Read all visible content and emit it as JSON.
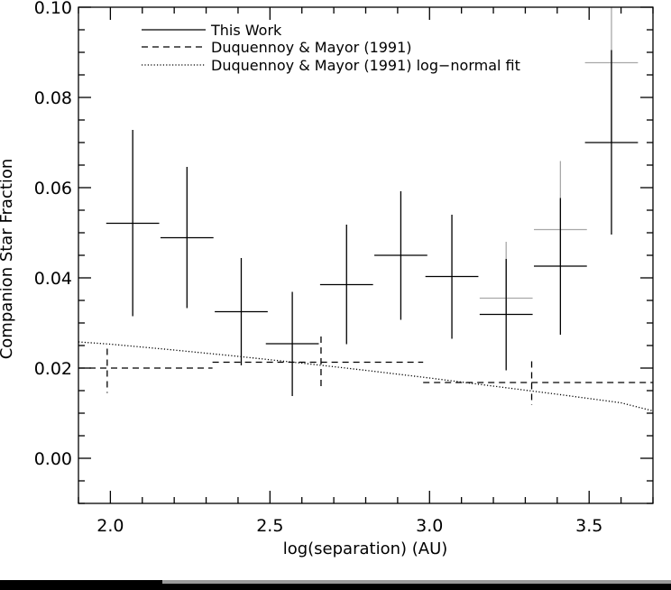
{
  "chart_data": {
    "type": "scatter",
    "xlabel": "log(separation) (AU)",
    "ylabel": "Companion Star Fraction",
    "xlim": [
      1.9,
      3.7
    ],
    "ylim": [
      -0.01,
      0.1
    ],
    "x_ticks": [
      "2.0",
      "2.5",
      "3.0",
      "3.5"
    ],
    "y_ticks": [
      "0.00",
      "0.02",
      "0.04",
      "0.06",
      "0.08",
      "0.10"
    ],
    "legend_position": "top-left",
    "legend": [
      {
        "label": "This Work",
        "style": "solid"
      },
      {
        "label": "Duquennoy & Mayor (1991)",
        "style": "dashed"
      },
      {
        "label": "Duquennoy & Mayor (1991) log−normal fit",
        "style": "dotted"
      }
    ],
    "series": [
      {
        "name": "This Work",
        "style": "solid",
        "color": "#000000",
        "points": [
          {
            "x": 2.07,
            "xerr": 0.083,
            "y": 0.0521,
            "ylo": 0.0315,
            "yhi": 0.0728
          },
          {
            "x": 2.24,
            "xerr": 0.083,
            "y": 0.0489,
            "ylo": 0.0333,
            "yhi": 0.0646
          },
          {
            "x": 2.41,
            "xerr": 0.083,
            "y": 0.0325,
            "ylo": 0.0206,
            "yhi": 0.0444
          },
          {
            "x": 2.57,
            "xerr": 0.083,
            "y": 0.0254,
            "ylo": 0.0138,
            "yhi": 0.0369
          },
          {
            "x": 2.74,
            "xerr": 0.083,
            "y": 0.0385,
            "ylo": 0.0253,
            "yhi": 0.0518
          },
          {
            "x": 2.91,
            "xerr": 0.083,
            "y": 0.045,
            "ylo": 0.0307,
            "yhi": 0.0592
          },
          {
            "x": 3.07,
            "xerr": 0.083,
            "y": 0.0403,
            "ylo": 0.0265,
            "yhi": 0.054
          },
          {
            "x": 3.24,
            "xerr": 0.083,
            "y": 0.0319,
            "ylo": 0.0195,
            "yhi": 0.0442
          },
          {
            "x": 3.41,
            "xerr": 0.083,
            "y": 0.0426,
            "ylo": 0.0274,
            "yhi": 0.0577
          },
          {
            "x": 3.57,
            "xerr": 0.083,
            "y": 0.07,
            "ylo": 0.0496,
            "yhi": 0.0905
          }
        ]
      },
      {
        "name": "",
        "style": "solid",
        "color": "#a8a8a8",
        "points": [
          {
            "x": 3.24,
            "xerr": 0.083,
            "y": 0.0355,
            "ylo": 0.0319,
            "yhi": 0.048
          },
          {
            "x": 3.41,
            "xerr": 0.083,
            "y": 0.0507,
            "ylo": 0.0426,
            "yhi": 0.0659
          },
          {
            "x": 3.57,
            "xerr": 0.083,
            "y": 0.0877,
            "ylo": 0.07,
            "yhi": 0.1
          }
        ]
      },
      {
        "name": "Duquennoy & Mayor (1991)",
        "style": "dashed",
        "color": "#000000",
        "points": [
          {
            "x": 1.99,
            "xlo": 1.9,
            "xhi": 2.32,
            "y": 0.02,
            "ylo": 0.0145,
            "yhi": 0.0243
          },
          {
            "x": 2.66,
            "xlo": 2.32,
            "xhi": 2.98,
            "y": 0.0213,
            "ylo": 0.0155,
            "yhi": 0.027
          },
          {
            "x": 3.32,
            "xlo": 2.98,
            "xhi": 3.7,
            "y": 0.0168,
            "ylo": 0.0118,
            "yhi": 0.0215
          }
        ]
      },
      {
        "name": "Duquennoy & Mayor (1991) log−normal fit",
        "style": "dotted",
        "color": "#000000",
        "x": [
          1.9,
          2.0,
          2.2,
          2.4,
          2.6,
          2.8,
          3.0,
          3.2,
          3.4,
          3.6,
          3.7
        ],
        "y": [
          0.0258,
          0.0253,
          0.024,
          0.0226,
          0.0211,
          0.0195,
          0.0178,
          0.016,
          0.0142,
          0.0123,
          0.0105
        ]
      }
    ]
  }
}
